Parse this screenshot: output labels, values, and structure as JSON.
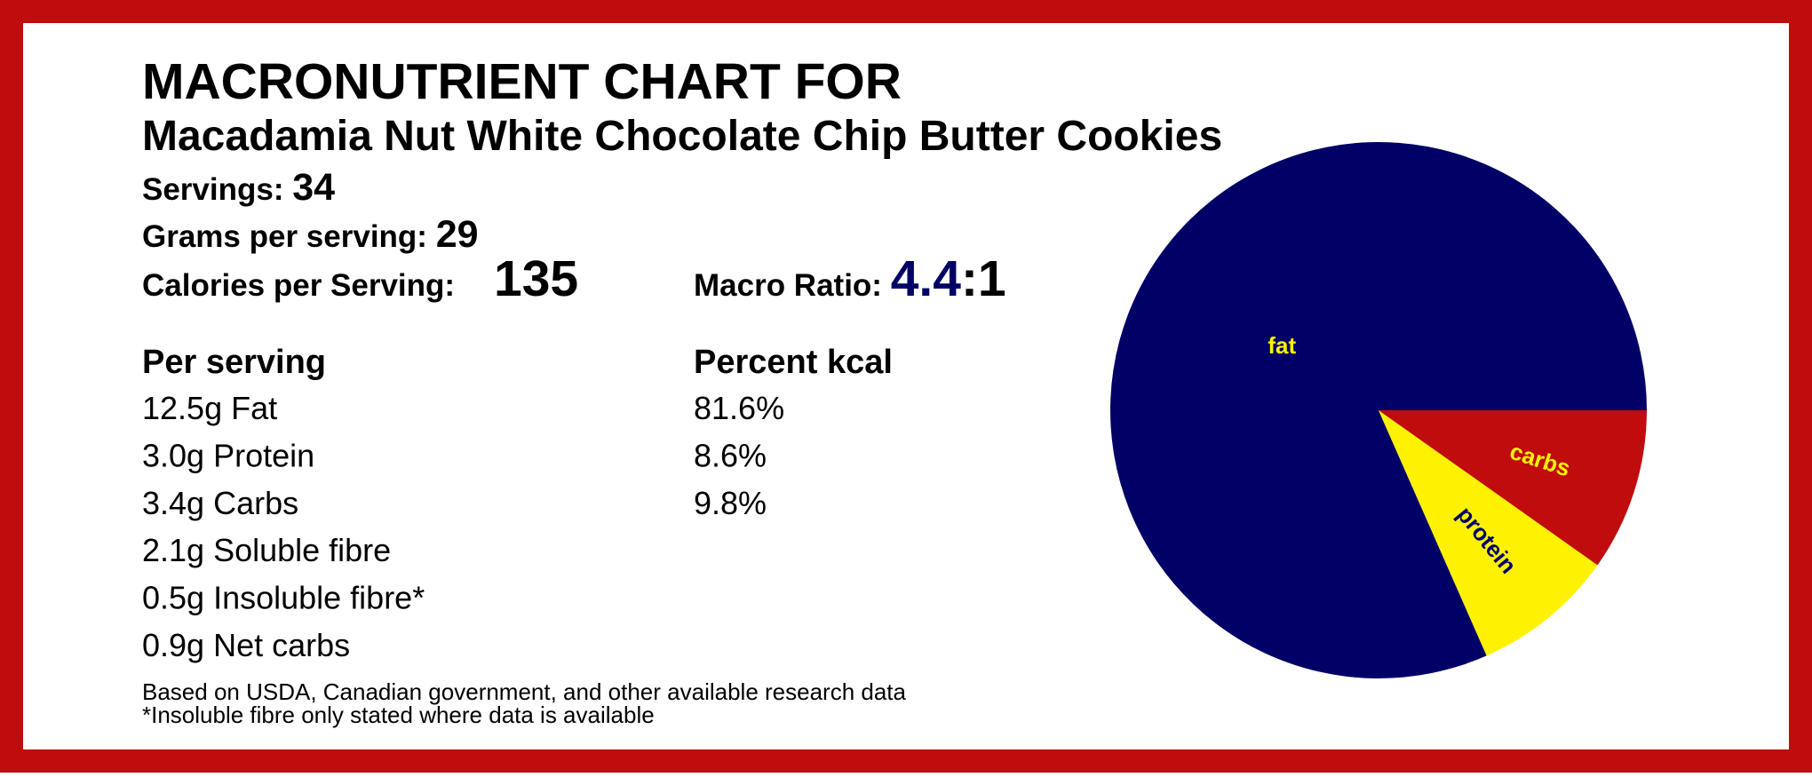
{
  "header": {
    "title": "MACRONUTRIENT CHART FOR",
    "subtitle": "Macadamia Nut White Chocolate Chip Butter Cookies"
  },
  "stats": {
    "servings_label": "Servings:",
    "servings": 34,
    "grams_label": "Grams per serving:",
    "grams": 29,
    "calories_label": "Calories per Serving:",
    "calories": 135,
    "ratio_label": "Macro Ratio:",
    "ratio": 4.4,
    "ratio_suffix": ":1"
  },
  "table": {
    "headers": [
      "Per serving",
      "Percent kcal"
    ],
    "rows": [
      [
        "12.5g Fat",
        "81.6%"
      ],
      [
        "3.0g Protein",
        "8.6%"
      ],
      [
        "3.4g Carbs",
        "9.8%"
      ],
      [
        "2.1g Soluble fibre"
      ],
      [
        "0.5g Insoluble fibre*"
      ],
      [
        "0.9g Net carbs"
      ]
    ]
  },
  "notes": [
    "Based on USDA, Canadian government, and other available research data",
    "*Insoluble fibre only stated where data is available"
  ],
  "chart_data": {
    "type": "pie",
    "categories": [
      "fat",
      "protein",
      "carbs"
    ],
    "values": [
      81.6,
      8.6,
      9.8
    ],
    "colors": [
      "#000066",
      "#fff200",
      "#c00c0c"
    ],
    "label_colors": [
      "#fff200",
      "#000066",
      "#fff200"
    ]
  }
}
